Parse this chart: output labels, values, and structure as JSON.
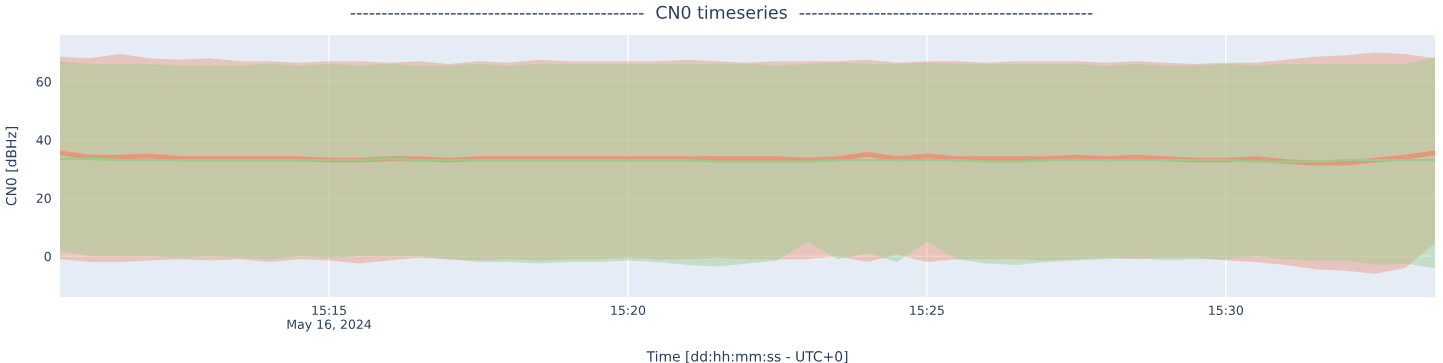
{
  "chart_data": {
    "type": "line",
    "title": "-----------------------------------------------  CN0 timeseries  -----------------------------------------------",
    "xlabel": "Time [dd:hh:mm:ss - UTC+0]",
    "ylabel": "CN0 [dBHz]",
    "x": [
      "2024-05-16T15:10:30",
      "2024-05-16T15:11:00",
      "2024-05-16T15:11:30",
      "2024-05-16T15:12:00",
      "2024-05-16T15:12:30",
      "2024-05-16T15:13:00",
      "2024-05-16T15:13:30",
      "2024-05-16T15:14:00",
      "2024-05-16T15:14:30",
      "2024-05-16T15:15:00",
      "2024-05-16T15:15:30",
      "2024-05-16T15:16:00",
      "2024-05-16T15:16:30",
      "2024-05-16T15:17:00",
      "2024-05-16T15:17:30",
      "2024-05-16T15:18:00",
      "2024-05-16T15:18:30",
      "2024-05-16T15:19:00",
      "2024-05-16T15:19:30",
      "2024-05-16T15:20:00",
      "2024-05-16T15:20:30",
      "2024-05-16T15:21:00",
      "2024-05-16T15:21:30",
      "2024-05-16T15:22:00",
      "2024-05-16T15:22:30",
      "2024-05-16T15:23:00",
      "2024-05-16T15:23:30",
      "2024-05-16T15:24:00",
      "2024-05-16T15:24:30",
      "2024-05-16T15:25:00",
      "2024-05-16T15:25:30",
      "2024-05-16T15:26:00",
      "2024-05-16T15:26:30",
      "2024-05-16T15:27:00",
      "2024-05-16T15:27:30",
      "2024-05-16T15:28:00",
      "2024-05-16T15:28:30",
      "2024-05-16T15:29:00",
      "2024-05-16T15:29:30",
      "2024-05-16T15:30:00",
      "2024-05-16T15:30:30",
      "2024-05-16T15:31:00",
      "2024-05-16T15:31:30",
      "2024-05-16T15:32:00",
      "2024-05-16T15:32:30",
      "2024-05-16T15:33:00",
      "2024-05-16T15:33:30"
    ],
    "series": [
      {
        "color": "#e8967a",
        "values": [
          35.5,
          34,
          34,
          34.5,
          33.5,
          33.5,
          33.5,
          33.5,
          33.5,
          33,
          33,
          33.5,
          33.5,
          33,
          33.5,
          33.5,
          33.5,
          33.5,
          33.5,
          33.5,
          33.5,
          33.5,
          33.5,
          33.5,
          33.5,
          33,
          33.5,
          35,
          33.5,
          34.5,
          33.5,
          33.5,
          33.5,
          33.5,
          34,
          33.5,
          34,
          33.5,
          33,
          33,
          33.5,
          32.5,
          32,
          32,
          33,
          34,
          35.5
        ],
        "upper": [
          68.5,
          68,
          69.5,
          68,
          67.5,
          68,
          67,
          67,
          66.5,
          67,
          67,
          66.5,
          67,
          66,
          67,
          66.5,
          67.5,
          67,
          67,
          67,
          67,
          67.5,
          67,
          66.5,
          67,
          67,
          67,
          67.5,
          66.5,
          67,
          67,
          66.5,
          67,
          67,
          67,
          66.5,
          67,
          66.5,
          66,
          66.5,
          66.5,
          67.5,
          68.5,
          69,
          70,
          69.5,
          68
        ],
        "lower": [
          -1,
          -2,
          -2,
          -1.5,
          -1,
          -1.5,
          -1,
          -2,
          -1,
          -1.5,
          -2.5,
          -1.5,
          -0.5,
          -1,
          -1.5,
          -1,
          -1.5,
          -1,
          -1,
          -0.5,
          -1,
          -1,
          -0.5,
          -1,
          -1,
          -1,
          0,
          -2,
          0.5,
          -2,
          -1,
          -1,
          -1,
          -1.5,
          -1,
          -0.5,
          -1,
          -0.5,
          -0.5,
          -1.5,
          -2,
          -3,
          -4.5,
          -5,
          -6,
          -4,
          4.5
        ]
      },
      {
        "color": "#98cc8c",
        "values": [
          33.5,
          33.5,
          33,
          33,
          33,
          33,
          33,
          33,
          33,
          33,
          33,
          33.5,
          33,
          33,
          33,
          33,
          33,
          33,
          33,
          33,
          33,
          33,
          32.5,
          32.5,
          32.5,
          32.5,
          33,
          33,
          33,
          33,
          33,
          32.5,
          32.5,
          33,
          33,
          33,
          33,
          33,
          33,
          33,
          32.5,
          32.5,
          32.5,
          33,
          33,
          33,
          33
        ],
        "upper": [
          67,
          66,
          66,
          66,
          65.5,
          65.5,
          65.5,
          66,
          65.5,
          66,
          65.5,
          66,
          65.5,
          65.5,
          66,
          65.5,
          66,
          66,
          66,
          66,
          66,
          66,
          66,
          66,
          65.5,
          66,
          66.5,
          66,
          66,
          66.5,
          66,
          66,
          66,
          66,
          66,
          65.5,
          66,
          65.5,
          65.5,
          66,
          65.5,
          66,
          66,
          66,
          66,
          66,
          68.5
        ],
        "lower": [
          2,
          0,
          0,
          0,
          -0.5,
          0,
          -0.5,
          -1,
          0,
          -0.5,
          0,
          0,
          0,
          -1,
          -2,
          -2,
          -2.5,
          -2,
          -2,
          -1.5,
          -2,
          -3,
          -3.5,
          -2.5,
          -1.5,
          5,
          -1,
          1,
          -2,
          5,
          -1,
          -2.5,
          -3,
          -2,
          -1.5,
          -1,
          -0.5,
          -1.5,
          -1,
          -1,
          0,
          -1,
          -1.5,
          -1.5,
          -3,
          -2.5,
          -4
        ]
      }
    ],
    "xlim": [
      "2024-05-16T15:10:30",
      "2024-05-16T15:33:30"
    ],
    "xticks": [
      {
        "value": "2024-05-16T15:15",
        "label": "15:15\nMay 16, 2024"
      },
      {
        "value": "2024-05-16T15:20",
        "label": "15:20"
      },
      {
        "value": "2024-05-16T15:25",
        "label": "15:25"
      },
      {
        "value": "2024-05-16T15:30",
        "label": "15:30"
      }
    ],
    "ylim": [
      -14,
      76
    ],
    "yticks": [
      0,
      20,
      40,
      60
    ],
    "grid": true
  }
}
